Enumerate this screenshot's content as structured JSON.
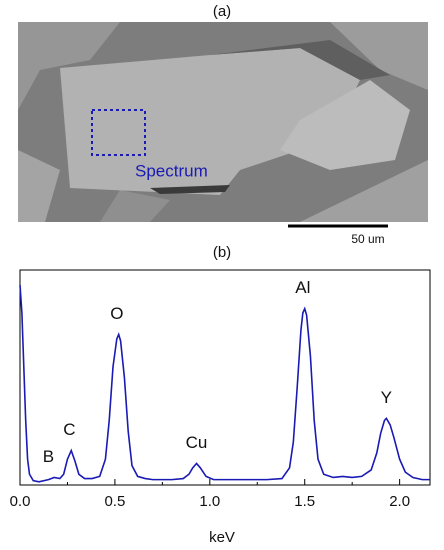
{
  "image": {
    "label": "(a)",
    "annotation": "Spectrum",
    "scale_bar": "50 um"
  },
  "chart_data": {
    "type": "line",
    "panel_label": "(b)",
    "x_label": "keV",
    "color": "#1a1ab4",
    "x": [
      0,
      0.01,
      0.02,
      0.03,
      0.04,
      0.05,
      0.07,
      0.1,
      0.15,
      0.18,
      0.21,
      0.23,
      0.25,
      0.27,
      0.29,
      0.31,
      0.34,
      0.38,
      0.42,
      0.45,
      0.47,
      0.49,
      0.51,
      0.52,
      0.53,
      0.55,
      0.57,
      0.59,
      0.62,
      0.66,
      0.7,
      0.8,
      0.86,
      0.89,
      0.91,
      0.93,
      0.95,
      0.98,
      1.02,
      1.1,
      1.2,
      1.3,
      1.38,
      1.42,
      1.44,
      1.46,
      1.48,
      1.49,
      1.5,
      1.51,
      1.53,
      1.55,
      1.57,
      1.6,
      1.65,
      1.7,
      1.75,
      1.8,
      1.85,
      1.88,
      1.9,
      1.92,
      1.93,
      1.95,
      1.97,
      2.0,
      2.03,
      2.07,
      2.12,
      2.16
    ],
    "values": [
      93,
      80,
      55,
      30,
      12,
      5,
      2,
      1.5,
      2.5,
      3.5,
      3,
      5,
      12,
      16,
      11,
      5,
      3,
      3,
      4,
      12,
      30,
      55,
      68,
      70,
      67,
      50,
      25,
      9,
      4,
      3,
      2.5,
      2.5,
      3,
      5,
      8,
      10,
      8,
      4,
      2.5,
      2.5,
      2.5,
      2.5,
      3,
      8,
      20,
      45,
      72,
      80,
      82,
      79,
      60,
      30,
      12,
      5,
      3.5,
      4,
      3.5,
      4,
      7,
      15,
      24,
      30,
      31,
      28,
      22,
      12,
      6,
      3.5,
      2.5,
      2.5
    ],
    "annotations": [
      {
        "text": "B",
        "x": 0.15
      },
      {
        "text": "C",
        "x": 0.26
      },
      {
        "text": "O",
        "x": 0.51
      },
      {
        "text": "Cu",
        "x": 0.93
      },
      {
        "text": "Al",
        "x": 1.49
      },
      {
        "text": "Y",
        "x": 1.93
      }
    ],
    "xlim": [
      0,
      2.16
    ],
    "ylim": [
      0,
      100
    ],
    "xticks": [
      {
        "value": 0,
        "label": "0.0"
      },
      0.5,
      {
        "value": 1,
        "label": "1.0"
      },
      1.5,
      {
        "value": 2,
        "label": "2.0"
      }
    ],
    "minor_xticks": [
      0.25,
      0.75,
      1.25,
      1.75
    ]
  }
}
